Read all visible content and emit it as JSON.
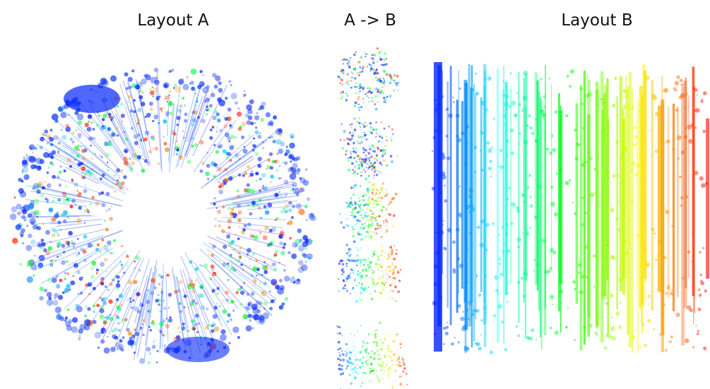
{
  "labels": {
    "layout_a": "Layout A",
    "transition": "A -> B",
    "layout_b": "Layout B"
  }
}
